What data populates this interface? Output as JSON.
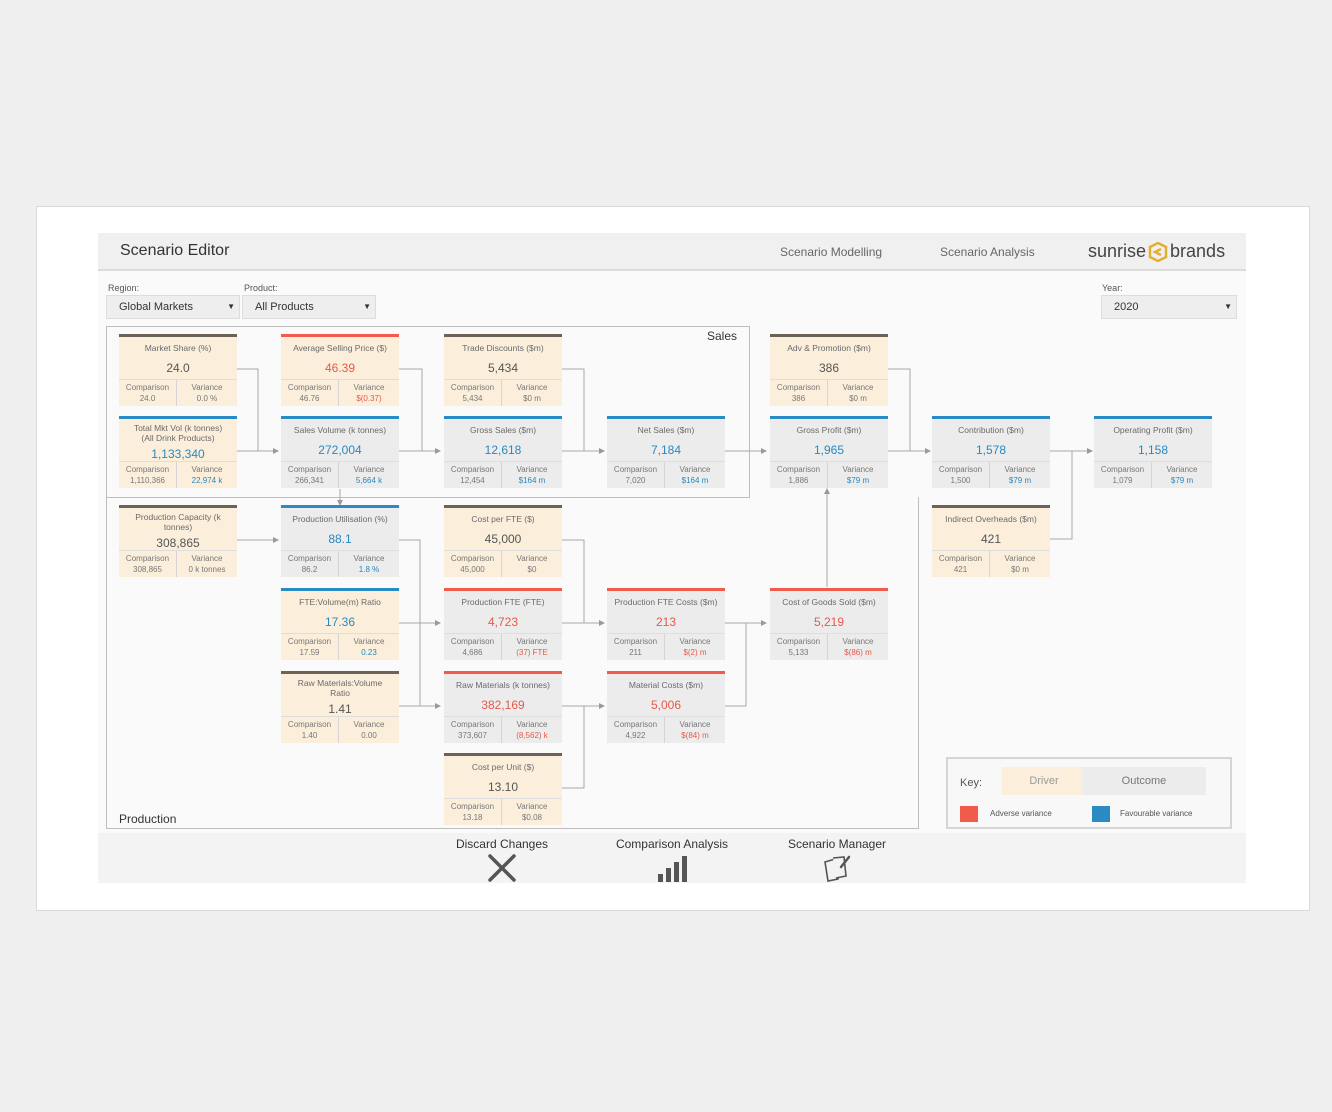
{
  "header": {
    "title": "Scenario Editor",
    "nav": [
      "Scenario Modelling",
      "Scenario Analysis"
    ],
    "brand_left": "sunrise",
    "brand_right": "brands",
    "brand_color": "#e0b030"
  },
  "filters": {
    "region_label": "Region:",
    "region_value": "Global Markets",
    "product_label": "Product:",
    "product_value": "All Products",
    "year_label": "Year:",
    "year_value": "2020"
  },
  "groups": {
    "sales": "Sales",
    "production": "Production"
  },
  "cards": {
    "market_share": {
      "label": "Market Share (%)",
      "value": "24.0",
      "comparison": "24.0",
      "variance": "0.0 %"
    },
    "total_mkt_vol": {
      "label": "Total Mkt Vol (k tonnes)\n(All Drink Products)",
      "value": "1,133,340",
      "comparison": "1,110,366",
      "variance": "22,974 k"
    },
    "avg_selling_price": {
      "label": "Average Selling Price ($)",
      "value": "46.39",
      "comparison": "46.76",
      "variance": "$(0.37)"
    },
    "sales_volume": {
      "label": "Sales Volume (k tonnes)",
      "value": "272,004",
      "comparison": "266,341",
      "variance": "5,664 k"
    },
    "trade_discounts": {
      "label": "Trade Discounts ($m)",
      "value": "5,434",
      "comparison": "5,434",
      "variance": "$0 m"
    },
    "gross_sales": {
      "label": "Gross Sales ($m)",
      "value": "12,618",
      "comparison": "12,454",
      "variance": "$164 m"
    },
    "net_sales": {
      "label": "Net Sales ($m)",
      "value": "7,184",
      "comparison": "7,020",
      "variance": "$164 m"
    },
    "adv_promotion": {
      "label": "Adv & Promotion ($m)",
      "value": "386",
      "comparison": "386",
      "variance": "$0 m"
    },
    "gross_profit": {
      "label": "Gross Profit ($m)",
      "value": "1,965",
      "comparison": "1,886",
      "variance": "$79 m"
    },
    "contribution": {
      "label": "Contribution ($m)",
      "value": "1,578",
      "comparison": "1,500",
      "variance": "$79 m"
    },
    "operating_profit": {
      "label": "Operating Profit ($m)",
      "value": "1,158",
      "comparison": "1,079",
      "variance": "$79 m"
    },
    "indirect_overheads": {
      "label": "Indirect Overheads ($m)",
      "value": "421",
      "comparison": "421",
      "variance": "$0 m"
    },
    "production_capacity": {
      "label": "Production Capacity (k\ntonnes)",
      "value": "308,865",
      "comparison": "308,865",
      "variance": "0 k tonnes"
    },
    "production_utilisation": {
      "label": "Production Utilisation (%)",
      "value": "88.1",
      "comparison": "86.2",
      "variance": "1.8 %"
    },
    "cost_per_fte": {
      "label": "Cost per FTE ($)",
      "value": "45,000",
      "comparison": "45,000",
      "variance": "$0"
    },
    "fte_volume_ratio": {
      "label": "FTE:Volume(m) Ratio",
      "value": "17.36",
      "comparison": "17.59",
      "variance": "0.23"
    },
    "production_fte": {
      "label": "Production FTE (FTE)",
      "value": "4,723",
      "comparison": "4,686",
      "variance": "(37) FTE"
    },
    "production_fte_costs": {
      "label": "Production FTE Costs ($m)",
      "value": "213",
      "comparison": "211",
      "variance": "$(2) m"
    },
    "cogs": {
      "label": "Cost of Goods Sold ($m)",
      "value": "5,219",
      "comparison": "5,133",
      "variance": "$(86) m"
    },
    "raw_materials_ratio": {
      "label": "Raw Materials:Volume\nRatio",
      "value": "1.41",
      "comparison": "1.40",
      "variance": "0.00"
    },
    "raw_materials": {
      "label": "Raw Materials (k tonnes)",
      "value": "382,169",
      "comparison": "373,607",
      "variance": "(8,562) k"
    },
    "material_costs": {
      "label": "Material Costs ($m)",
      "value": "5,006",
      "comparison": "4,922",
      "variance": "$(84) m"
    },
    "cost_per_unit": {
      "label": "Cost per Unit ($)",
      "value": "13.10",
      "comparison": "13.18",
      "variance": "$0.08"
    }
  },
  "sub_labels": {
    "comparison": "Comparison",
    "variance": "Variance"
  },
  "key": {
    "label": "Key:",
    "driver": "Driver",
    "outcome": "Outcome",
    "adverse": "Adverse variance",
    "favourable": "Favourable variance",
    "adverse_color": "#f05b4b",
    "favourable_color": "#2a8ac4"
  },
  "actions": {
    "discard": "Discard Changes",
    "comparison": "Comparison Analysis",
    "manager": "Scenario Manager"
  }
}
